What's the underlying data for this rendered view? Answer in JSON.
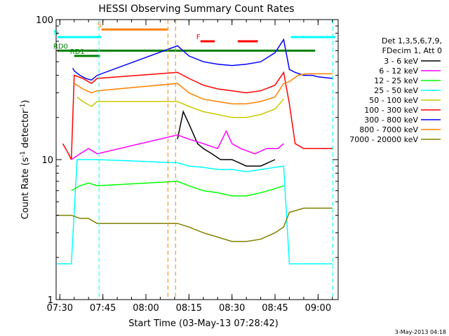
{
  "chart_data": {
    "type": "line",
    "title": "HESSI Observing Summary Count Rates",
    "xlabel": "Start Time (03-May-13 07:28:42)",
    "ylabel_prefix": "Count Rate (s",
    "ylabel_sup1": "-1",
    "ylabel_mid": " detector",
    "ylabel_sup2": "-1",
    "ylabel_suffix": ")",
    "y_scale": "log",
    "ylim": [
      1,
      100
    ],
    "xlim": [
      "07:28:42",
      "09:07:00"
    ],
    "x_ticks": [
      {
        "t": "07:30",
        "label": "07:30"
      },
      {
        "t": "07:45",
        "label": "07:45"
      },
      {
        "t": "08:00",
        "label": "08:00"
      },
      {
        "t": "08:15",
        "label": "08:15"
      },
      {
        "t": "08:30",
        "label": "08:30"
      },
      {
        "t": "08:45",
        "label": "08:45"
      },
      {
        "t": "09:00",
        "label": "09:00"
      }
    ],
    "y_ticks": [
      {
        "v": 1,
        "label": "1"
      },
      {
        "v": 10,
        "label": "10"
      },
      {
        "v": 100,
        "label": "100"
      }
    ],
    "legend": {
      "placement": "right",
      "header": [
        "Det 1,3,5,6,7,9,",
        "FDecim 1, Att 0"
      ],
      "entries": [
        {
          "label": "3 - 6 keV",
          "color": "#000000"
        },
        {
          "label": "6 - 12 keV",
          "color": "#ff00ff"
        },
        {
          "label": "12 - 25 keV",
          "color": "#00ff00"
        },
        {
          "label": "25 - 50 keV",
          "color": "#00ffff"
        },
        {
          "label": "50 - 100 keV",
          "color": "#c8c800"
        },
        {
          "label": "100 - 300 keV",
          "color": "#ff0000"
        },
        {
          "label": "300 - 800 keV",
          "color": "#0000ff"
        },
        {
          "label": "800 - 7000 keV",
          "color": "#ff8000"
        },
        {
          "label": "7000 - 20000 keV",
          "color": "#808000"
        }
      ]
    },
    "flag_bars": [
      {
        "label": "N",
        "color": "#00ffff",
        "segments": [
          [
            "07:29:10",
            "07:44:30"
          ],
          [
            "08:50:30",
            "09:06:00"
          ]
        ],
        "y": 75
      },
      {
        "label": "S",
        "color": "#ff8000",
        "segments": [
          [
            "07:44:30",
            "08:07:30"
          ]
        ],
        "y": 85
      },
      {
        "label": "F",
        "color": "#ff0000",
        "segments": [
          [
            "08:19:00",
            "08:24:00"
          ],
          [
            "08:32:00",
            "08:39:00"
          ]
        ],
        "y": 70
      },
      {
        "label": "RD0",
        "color": "#008000",
        "segments": [
          [
            "07:29:10",
            "08:07:00"
          ],
          [
            "08:07:00",
            "08:49:00"
          ],
          [
            "08:49:00",
            "08:59:00"
          ]
        ],
        "y": 60
      },
      {
        "label": "RD1",
        "color": "#008000",
        "segments": [
          [
            "07:35:00",
            "07:44:00"
          ]
        ],
        "y": 55
      }
    ],
    "vertical_markers": [
      {
        "t": "07:43:40",
        "color": "#00ffff",
        "style": "dashed"
      },
      {
        "t": "08:07:40",
        "color": "#ff8000",
        "style": "dashed"
      },
      {
        "t": "08:10:20",
        "color": "#ff8000",
        "style": "dashed"
      },
      {
        "t": "09:05:10",
        "color": "#00ffff",
        "style": "dashed"
      }
    ],
    "series": [
      {
        "name": "300 - 800 keV",
        "color": "#0000ff",
        "x": [
          "07:34:30",
          "07:35",
          "07:37",
          "07:39",
          "07:41",
          "07:43",
          "08:11",
          "08:15",
          "08:20",
          "08:25",
          "08:30",
          "08:35",
          "08:40",
          "08:45",
          "08:48",
          "08:50",
          "08:52",
          "08:55",
          "08:58",
          "09:00",
          "09:05"
        ],
        "y": [
          45,
          43,
          40,
          38,
          37,
          40,
          65,
          55,
          50,
          48,
          47,
          48,
          50,
          58,
          72,
          44,
          42,
          40,
          40,
          39,
          38
        ]
      },
      {
        "name": "100 - 300 keV",
        "color": "#ff0000",
        "x": [
          "07:31",
          "07:32",
          "07:33",
          "07:34",
          "07:35",
          "07:38",
          "07:41",
          "07:43",
          "08:11",
          "08:15",
          "08:20",
          "08:25",
          "08:30",
          "08:35",
          "08:40",
          "08:45",
          "08:48",
          "08:50",
          "08:52",
          "08:55",
          "09:00",
          "09:05"
        ],
        "y": [
          13,
          12,
          11,
          10,
          40,
          38,
          35,
          38,
          42,
          38,
          34,
          32,
          31,
          30,
          31,
          34,
          42,
          25,
          13,
          12,
          12,
          12
        ]
      },
      {
        "name": "800 - 7000 keV",
        "color": "#ff8000",
        "x": [
          "07:35",
          "07:38",
          "07:41",
          "07:43",
          "08:11",
          "08:15",
          "08:20",
          "08:25",
          "08:30",
          "08:35",
          "08:40",
          "08:45",
          "08:48",
          "08:50",
          "08:53",
          "08:56",
          "09:00",
          "09:05"
        ],
        "y": [
          35,
          32,
          30,
          31,
          35,
          30,
          27,
          26,
          25,
          25,
          26,
          28,
          35,
          36,
          40,
          41,
          41,
          41
        ]
      },
      {
        "name": "50 - 100 keV",
        "color": "#c8c800",
        "x": [
          "07:36",
          "07:38",
          "07:41",
          "07:43",
          "08:11",
          "08:15",
          "08:20",
          "08:25",
          "08:30",
          "08:35",
          "08:40",
          "08:45",
          "08:48"
        ],
        "y": [
          28,
          26,
          24,
          26,
          26,
          24,
          22,
          21,
          20,
          20,
          21,
          23,
          27
        ]
      },
      {
        "name": "3 - 6 keV",
        "color": "#000000",
        "x": [
          "08:11",
          "08:13",
          "08:15",
          "08:18",
          "08:20",
          "08:23",
          "08:26",
          "08:30",
          "08:35",
          "08:40",
          "08:45"
        ],
        "y": [
          14,
          22,
          18,
          13,
          12,
          11,
          10,
          10,
          9,
          9,
          10
        ]
      },
      {
        "name": "6 - 12 keV",
        "color": "#ff00ff",
        "x": [
          "07:34",
          "07:37",
          "07:40",
          "07:43",
          "08:11",
          "08:15",
          "08:20",
          "08:25",
          "08:28",
          "08:30",
          "08:33",
          "08:38",
          "08:42",
          "08:46",
          "08:48"
        ],
        "y": [
          10,
          11,
          12,
          11,
          15,
          14,
          13,
          12,
          16,
          13,
          12,
          11,
          12,
          12,
          13
        ]
      },
      {
        "name": "25 - 50 keV",
        "color": "#00ffff",
        "x": [
          "07:29",
          "07:34",
          "07:36",
          "07:40",
          "07:43",
          "08:11",
          "08:15",
          "08:20",
          "08:25",
          "08:30",
          "08:35",
          "08:40",
          "08:45",
          "08:48",
          "08:50",
          "08:53",
          "08:57",
          "09:00",
          "09:05"
        ],
        "y": [
          1.8,
          1.8,
          10,
          10,
          10,
          9.5,
          9,
          8.8,
          8.5,
          8.5,
          8.2,
          8.5,
          8.8,
          9,
          1.8,
          1.8,
          1.8,
          1.8,
          1.8
        ]
      },
      {
        "name": "12 - 25 keV",
        "color": "#00ff00",
        "x": [
          "07:34",
          "07:37",
          "07:40",
          "07:43",
          "08:11",
          "08:15",
          "08:20",
          "08:25",
          "08:30",
          "08:35",
          "08:40",
          "08:45",
          "08:48"
        ],
        "y": [
          6,
          6.5,
          6.8,
          6.5,
          7,
          6.5,
          6,
          5.8,
          5.5,
          5.5,
          5.8,
          6.2,
          6.5
        ]
      },
      {
        "name": "7000 - 20000 keV",
        "color": "#808000",
        "x": [
          "07:29",
          "07:32",
          "07:34",
          "07:37",
          "07:40",
          "07:43",
          "08:11",
          "08:15",
          "08:20",
          "08:25",
          "08:30",
          "08:35",
          "08:40",
          "08:45",
          "08:48",
          "08:50",
          "08:55",
          "09:00",
          "09:05"
        ],
        "y": [
          4,
          4,
          4,
          3.8,
          3.8,
          3.5,
          3.5,
          3.3,
          3,
          2.8,
          2.6,
          2.6,
          2.7,
          3,
          3.3,
          4.2,
          4.5,
          4.5,
          4.5
        ]
      }
    ]
  },
  "footer_date": "3-May-2013 04:18"
}
